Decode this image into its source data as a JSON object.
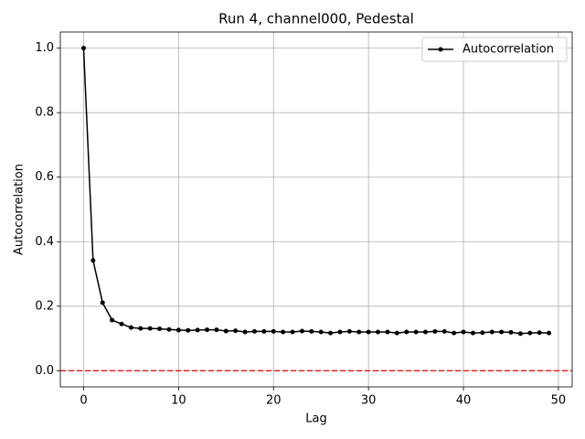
{
  "chart_data": {
    "type": "line",
    "title": "Run 4, channel000, Pedestal",
    "xlabel": "Lag",
    "ylabel": "Autocorrelation",
    "x": [
      0,
      1,
      2,
      3,
      4,
      5,
      6,
      7,
      8,
      9,
      10,
      11,
      12,
      13,
      14,
      15,
      16,
      17,
      18,
      19,
      20,
      21,
      22,
      23,
      24,
      25,
      26,
      27,
      28,
      29,
      30,
      31,
      32,
      33,
      34,
      35,
      36,
      37,
      38,
      39,
      40,
      41,
      42,
      43,
      44,
      45,
      46,
      47,
      48,
      49
    ],
    "series": [
      {
        "name": "Autocorrelation",
        "color": "#000000",
        "values": [
          1.0,
          0.342,
          0.211,
          0.157,
          0.145,
          0.134,
          0.131,
          0.131,
          0.13,
          0.128,
          0.126,
          0.125,
          0.126,
          0.127,
          0.127,
          0.123,
          0.124,
          0.12,
          0.122,
          0.122,
          0.122,
          0.12,
          0.12,
          0.123,
          0.122,
          0.12,
          0.117,
          0.12,
          0.122,
          0.12,
          0.12,
          0.12,
          0.12,
          0.117,
          0.12,
          0.12,
          0.12,
          0.122,
          0.122,
          0.117,
          0.12,
          0.117,
          0.118,
          0.12,
          0.12,
          0.119,
          0.115,
          0.117,
          0.118,
          0.117
        ]
      }
    ],
    "hline": {
      "value": 0,
      "color": "#d62728"
    },
    "xlim": [
      -2.45,
      51.45
    ],
    "xticks": [
      0,
      10,
      20,
      30,
      40,
      50
    ],
    "ylim": [
      -0.05,
      1.05
    ],
    "yticks": [
      {
        "value": 0,
        "label": "0.0"
      },
      0.2,
      0.4,
      0.6,
      0.8,
      {
        "value": 1,
        "label": "1.0"
      }
    ],
    "grid": true,
    "legend": "upper right"
  }
}
